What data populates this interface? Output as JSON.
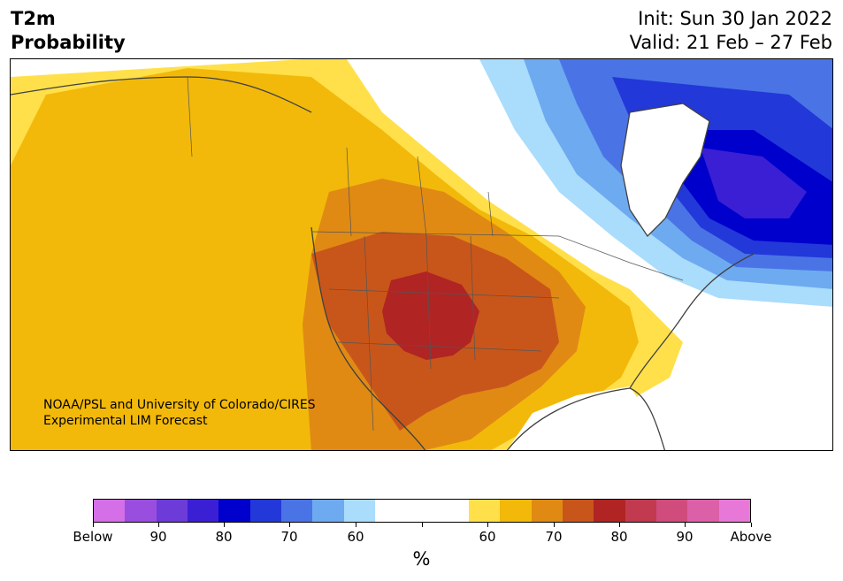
{
  "title": {
    "left_line1": "T2m",
    "left_line2": "Probability",
    "right_line1": "Init: Sun 30 Jan 2022",
    "right_line2": "Valid: 21 Feb – 27 Feb"
  },
  "credit": {
    "line1": "NOAA/PSL and University of Colorado/CIRES",
    "line2": "Experimental LIM Forecast"
  },
  "colors": {
    "below_95": "#d46fe8",
    "below_90": "#9a4ee0",
    "below_85": "#6c3bd8",
    "below_80": "#3a1fd4",
    "below_75": "#0000cc",
    "below_70": "#2338d8",
    "below_65": "#4a74e6",
    "below_60": "#6eaaf0",
    "below_55": "#aadcfc",
    "neutral": "#ffffff",
    "above_55": "#ffe04a",
    "above_60": "#f2b90a",
    "above_65": "#e08a14",
    "above_70": "#c8561a",
    "above_75": "#b02424",
    "above_80": "#c23a50",
    "above_85": "#d04c7c",
    "above_90": "#dc60a8",
    "above_95": "#e878d8"
  },
  "colorbar": {
    "tick_labels": [
      "Below",
      "90",
      "80",
      "70",
      "60",
      "",
      "60",
      "70",
      "80",
      "90",
      "Above"
    ],
    "units": "%"
  }
}
